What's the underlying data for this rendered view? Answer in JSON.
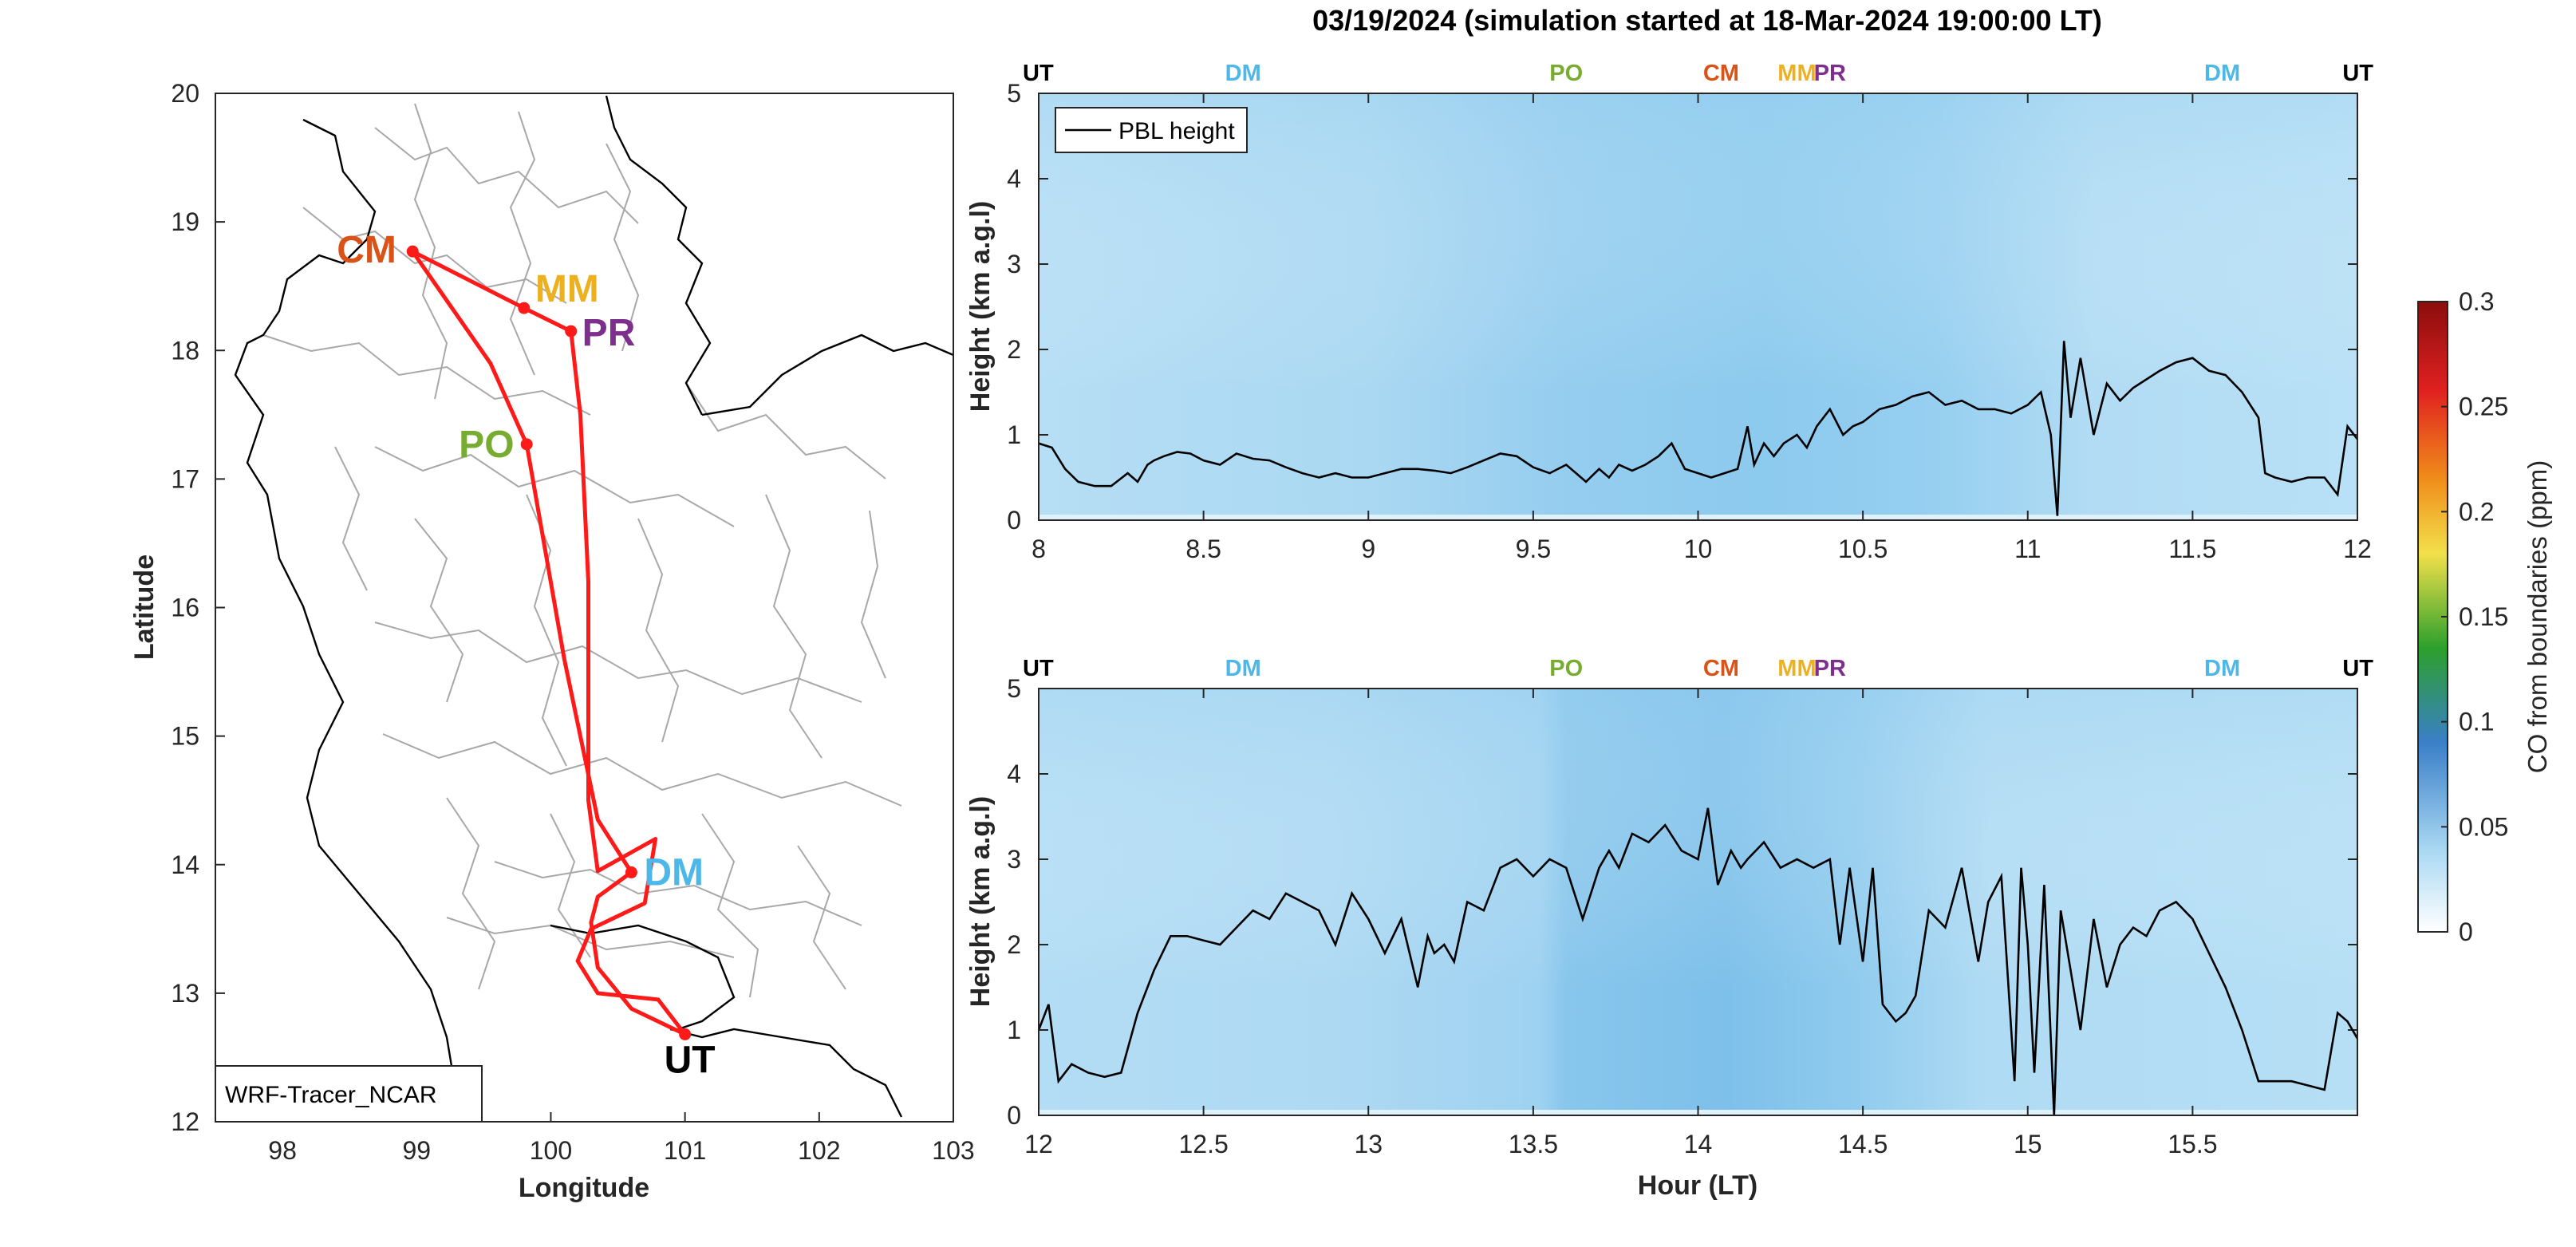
{
  "figure": {
    "title": "03/19/2024 (simulation started at 18-Mar-2024 19:00:00 LT)",
    "colors": {
      "background_field": "#a9d8f2",
      "pbl_line": "#000000",
      "route": "#ff1a1a",
      "boundary": "#a8a8a8",
      "coast": "#000000",
      "site_UT": "#000000",
      "site_DM": "#4db8e8",
      "site_PO": "#77ac30",
      "site_CM": "#d95319",
      "site_MM": "#edb120",
      "site_PR": "#7e2f8e"
    }
  },
  "map": {
    "xlabel": "Longitude",
    "ylabel": "Latitude",
    "xlim": [
      97.5,
      103
    ],
    "ylim": [
      12,
      20
    ],
    "xticks": [
      "98",
      "99",
      "100",
      "101",
      "102",
      "103"
    ],
    "yticks": [
      "12",
      "13",
      "14",
      "15",
      "16",
      "17",
      "18",
      "19",
      "20"
    ],
    "model_label": "WRF-Tracer_NCAR",
    "sites": [
      {
        "code": "CM",
        "lon": 98.97,
        "lat": 18.77,
        "color_key": "site_CM"
      },
      {
        "code": "MM",
        "lon": 99.8,
        "lat": 18.33,
        "color_key": "site_MM"
      },
      {
        "code": "PR",
        "lon": 100.15,
        "lat": 18.15,
        "color_key": "site_PR"
      },
      {
        "code": "PO",
        "lon": 99.82,
        "lat": 17.27,
        "color_key": "site_PO"
      },
      {
        "code": "DM",
        "lon": 100.6,
        "lat": 13.94,
        "color_key": "site_DM"
      },
      {
        "code": "UT",
        "lon": 101.0,
        "lat": 12.68,
        "color_key": "site_UT"
      }
    ],
    "route": [
      [
        101.0,
        12.68
      ],
      [
        100.6,
        12.88
      ],
      [
        100.35,
        13.2
      ],
      [
        100.3,
        13.55
      ],
      [
        100.35,
        13.75
      ],
      [
        100.6,
        13.94
      ],
      [
        100.35,
        14.35
      ],
      [
        100.1,
        15.6
      ],
      [
        99.82,
        17.27
      ],
      [
        99.55,
        17.9
      ],
      [
        98.97,
        18.77
      ],
      [
        99.8,
        18.33
      ],
      [
        100.15,
        18.15
      ],
      [
        100.22,
        17.5
      ],
      [
        100.28,
        16.2
      ],
      [
        100.28,
        14.5
      ],
      [
        100.35,
        13.95
      ],
      [
        100.78,
        14.2
      ],
      [
        100.7,
        13.7
      ],
      [
        100.3,
        13.5
      ],
      [
        100.2,
        13.25
      ],
      [
        100.35,
        13.0
      ],
      [
        100.8,
        12.95
      ],
      [
        101.0,
        12.68
      ]
    ]
  },
  "chart_data": [
    {
      "type": "area",
      "panel": "top",
      "ylabel": "Height (km a.g.l)",
      "xlim": [
        8,
        12
      ],
      "ylim": [
        0,
        5
      ],
      "xticks": [
        "8",
        "8.5",
        "9",
        "9.5",
        "10",
        "10.5",
        "11",
        "11.5",
        "12"
      ],
      "yticks": [
        "0",
        "1",
        "2",
        "3",
        "4",
        "5"
      ],
      "legend": {
        "entry": "PBL height",
        "placement": "top-left"
      },
      "site_markers": [
        {
          "code": "UT",
          "x": 8.0,
          "color_key": "site_UT"
        },
        {
          "code": "DM",
          "x": 8.62,
          "color_key": "site_DM"
        },
        {
          "code": "PO",
          "x": 9.6,
          "color_key": "site_PO"
        },
        {
          "code": "CM",
          "x": 10.07,
          "color_key": "site_CM"
        },
        {
          "code": "MM",
          "x": 10.3,
          "color_key": "site_MM"
        },
        {
          "code": "PR",
          "x": 10.4,
          "color_key": "site_PR"
        },
        {
          "code": "DM",
          "x": 11.59,
          "color_key": "site_DM"
        },
        {
          "code": "UT",
          "x": 12.0,
          "color_key": "site_UT"
        }
      ],
      "series": [
        {
          "name": "PBL height",
          "x": [
            8.0,
            8.04,
            8.08,
            8.12,
            8.17,
            8.22,
            8.27,
            8.3,
            8.33,
            8.35,
            8.38,
            8.42,
            8.46,
            8.5,
            8.55,
            8.6,
            8.65,
            8.7,
            8.75,
            8.8,
            8.85,
            8.9,
            8.95,
            9.0,
            9.05,
            9.1,
            9.15,
            9.2,
            9.25,
            9.3,
            9.35,
            9.4,
            9.45,
            9.5,
            9.55,
            9.6,
            9.63,
            9.66,
            9.7,
            9.73,
            9.76,
            9.8,
            9.84,
            9.88,
            9.92,
            9.96,
            10.0,
            10.04,
            10.08,
            10.12,
            10.15,
            10.17,
            10.2,
            10.23,
            10.26,
            10.3,
            10.33,
            10.36,
            10.4,
            10.44,
            10.47,
            10.5,
            10.55,
            10.6,
            10.65,
            10.7,
            10.75,
            10.8,
            10.85,
            10.9,
            10.95,
            11.0,
            11.04,
            11.07,
            11.09,
            11.11,
            11.13,
            11.16,
            11.2,
            11.24,
            11.28,
            11.32,
            11.36,
            11.4,
            11.45,
            11.5,
            11.55,
            11.6,
            11.65,
            11.7,
            11.72,
            11.75,
            11.8,
            11.85,
            11.9,
            11.94,
            11.97,
            12.0
          ],
          "y": [
            0.9,
            0.85,
            0.6,
            0.45,
            0.4,
            0.4,
            0.55,
            0.45,
            0.65,
            0.7,
            0.75,
            0.8,
            0.78,
            0.7,
            0.65,
            0.78,
            0.72,
            0.7,
            0.62,
            0.55,
            0.5,
            0.55,
            0.5,
            0.5,
            0.55,
            0.6,
            0.6,
            0.58,
            0.55,
            0.62,
            0.7,
            0.78,
            0.75,
            0.62,
            0.55,
            0.65,
            0.55,
            0.45,
            0.6,
            0.5,
            0.65,
            0.58,
            0.65,
            0.75,
            0.9,
            0.6,
            0.55,
            0.5,
            0.55,
            0.6,
            1.1,
            0.65,
            0.9,
            0.75,
            0.9,
            1.0,
            0.85,
            1.1,
            1.3,
            1.0,
            1.1,
            1.15,
            1.3,
            1.35,
            1.45,
            1.5,
            1.35,
            1.4,
            1.3,
            1.3,
            1.25,
            1.35,
            1.5,
            1.0,
            0.05,
            2.1,
            1.2,
            1.9,
            1.0,
            1.6,
            1.4,
            1.55,
            1.65,
            1.75,
            1.85,
            1.9,
            1.75,
            1.7,
            1.5,
            1.2,
            0.55,
            0.5,
            0.45,
            0.5,
            0.5,
            0.3,
            1.1,
            0.95
          ]
        }
      ]
    },
    {
      "type": "area",
      "panel": "bottom",
      "xlabel": "Hour (LT)",
      "ylabel": "Height (km a.g.l)",
      "xlim": [
        12,
        16
      ],
      "ylim": [
        0,
        5
      ],
      "xticks": [
        "12",
        "12.5",
        "13",
        "13.5",
        "14",
        "14.5",
        "15",
        "15.5"
      ],
      "yticks": [
        "0",
        "1",
        "2",
        "3",
        "4",
        "5"
      ],
      "site_markers": [
        {
          "code": "UT",
          "x": 12.0,
          "color_key": "site_UT"
        },
        {
          "code": "DM",
          "x": 12.62,
          "color_key": "site_DM"
        },
        {
          "code": "PO",
          "x": 13.6,
          "color_key": "site_PO"
        },
        {
          "code": "CM",
          "x": 14.07,
          "color_key": "site_CM"
        },
        {
          "code": "MM",
          "x": 14.3,
          "color_key": "site_MM"
        },
        {
          "code": "PR",
          "x": 14.4,
          "color_key": "site_PR"
        },
        {
          "code": "DM",
          "x": 15.59,
          "color_key": "site_DM"
        },
        {
          "code": "UT",
          "x": 16.0,
          "color_key": "site_UT"
        }
      ],
      "series": [
        {
          "name": "PBL height",
          "x": [
            12.0,
            12.03,
            12.06,
            12.1,
            12.15,
            12.2,
            12.25,
            12.3,
            12.35,
            12.4,
            12.45,
            12.5,
            12.55,
            12.6,
            12.65,
            12.7,
            12.75,
            12.8,
            12.85,
            12.9,
            12.95,
            13.0,
            13.05,
            13.1,
            13.15,
            13.18,
            13.2,
            13.23,
            13.26,
            13.3,
            13.35,
            13.4,
            13.45,
            13.5,
            13.55,
            13.6,
            13.65,
            13.7,
            13.73,
            13.76,
            13.8,
            13.85,
            13.9,
            13.95,
            14.0,
            14.03,
            14.06,
            14.1,
            14.13,
            14.15,
            14.2,
            14.25,
            14.3,
            14.35,
            14.4,
            14.43,
            14.46,
            14.5,
            14.53,
            14.56,
            14.6,
            14.63,
            14.66,
            14.7,
            14.75,
            14.8,
            14.85,
            14.88,
            14.92,
            14.96,
            14.98,
            15.0,
            15.02,
            15.05,
            15.08,
            15.1,
            15.13,
            15.16,
            15.2,
            15.24,
            15.28,
            15.32,
            15.36,
            15.4,
            15.45,
            15.5,
            15.55,
            15.6,
            15.65,
            15.7,
            15.75,
            15.8,
            15.85,
            15.9,
            15.94,
            15.97,
            16.0
          ],
          "y": [
            1.0,
            1.3,
            0.4,
            0.6,
            0.5,
            0.45,
            0.5,
            1.2,
            1.7,
            2.1,
            2.1,
            2.05,
            2.0,
            2.2,
            2.4,
            2.3,
            2.6,
            2.5,
            2.4,
            2.0,
            2.6,
            2.3,
            1.9,
            2.3,
            1.5,
            2.1,
            1.9,
            2.0,
            1.8,
            2.5,
            2.4,
            2.9,
            3.0,
            2.8,
            3.0,
            2.9,
            2.3,
            2.9,
            3.1,
            2.9,
            3.3,
            3.2,
            3.4,
            3.1,
            3.0,
            3.6,
            2.7,
            3.1,
            2.9,
            3.0,
            3.2,
            2.9,
            3.0,
            2.9,
            3.0,
            2.0,
            2.9,
            1.8,
            2.9,
            1.3,
            1.1,
            1.2,
            1.4,
            2.4,
            2.2,
            2.9,
            1.8,
            2.5,
            2.8,
            0.4,
            2.9,
            2.0,
            0.5,
            2.7,
            0.0,
            2.4,
            1.7,
            1.0,
            2.3,
            1.5,
            2.0,
            2.2,
            2.1,
            2.4,
            2.5,
            2.3,
            1.9,
            1.5,
            1.0,
            0.4,
            0.4,
            0.4,
            0.35,
            0.3,
            1.2,
            1.1,
            0.9
          ]
        }
      ]
    }
  ],
  "colorbar": {
    "label": "CO from boundaries (ppm)",
    "limits": [
      0,
      0.3
    ],
    "ticks": [
      "0",
      "0.05",
      "0.1",
      "0.15",
      "0.2",
      "0.25",
      "0.3"
    ],
    "colormap": [
      "#ffffff",
      "#a9d8f2",
      "#3a7fc8",
      "#2ca02c",
      "#f2e04a",
      "#f08c1a",
      "#e02020",
      "#8b0d0d"
    ]
  }
}
